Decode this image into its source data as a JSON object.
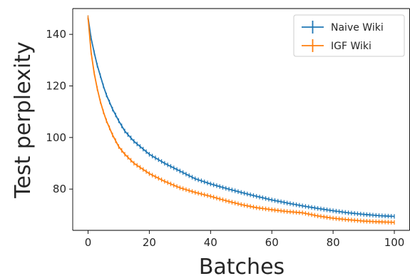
{
  "chart_data": {
    "type": "line",
    "xlabel": "Batches",
    "ylabel": "Test perplexity",
    "xlim": [
      -5,
      105
    ],
    "ylim": [
      64,
      150
    ],
    "xticks": [
      0,
      20,
      40,
      60,
      80,
      100
    ],
    "yticks": [
      80,
      100,
      120,
      140
    ],
    "grid": false,
    "legend_position": "top-right",
    "series": [
      {
        "name": "Naive Wiki",
        "color": "#1f77b4",
        "error_bars": true,
        "x": [
          0,
          1,
          2,
          3,
          4,
          5,
          6,
          8,
          10,
          12,
          15,
          20,
          25,
          30,
          35,
          40,
          45,
          50,
          55,
          60,
          65,
          70,
          75,
          80,
          85,
          90,
          95,
          100
        ],
        "y": [
          146.5,
          138.5,
          133.0,
          128.0,
          124.0,
          120.0,
          116.5,
          111.0,
          106.5,
          102.5,
          98.5,
          93.5,
          90.0,
          87.0,
          84.0,
          82.0,
          80.3,
          78.7,
          77.2,
          75.8,
          74.6,
          73.5,
          72.5,
          71.6,
          70.8,
          70.2,
          69.7,
          69.4
        ]
      },
      {
        "name": "IGF Wiki",
        "color": "#ff7f0e",
        "error_bars": true,
        "x": [
          0,
          1,
          2,
          3,
          4,
          5,
          6,
          8,
          10,
          12,
          15,
          20,
          25,
          30,
          35,
          40,
          45,
          50,
          55,
          60,
          65,
          70,
          75,
          80,
          85,
          90,
          95,
          100
        ],
        "y": [
          146.5,
          133.0,
          125.0,
          119.0,
          114.0,
          110.0,
          106.5,
          101.0,
          96.5,
          93.5,
          90.0,
          86.0,
          83.0,
          80.5,
          78.7,
          77.2,
          75.5,
          74.0,
          72.8,
          72.0,
          71.3,
          70.8,
          69.6,
          68.7,
          68.1,
          67.6,
          67.3,
          67.1
        ]
      }
    ]
  }
}
